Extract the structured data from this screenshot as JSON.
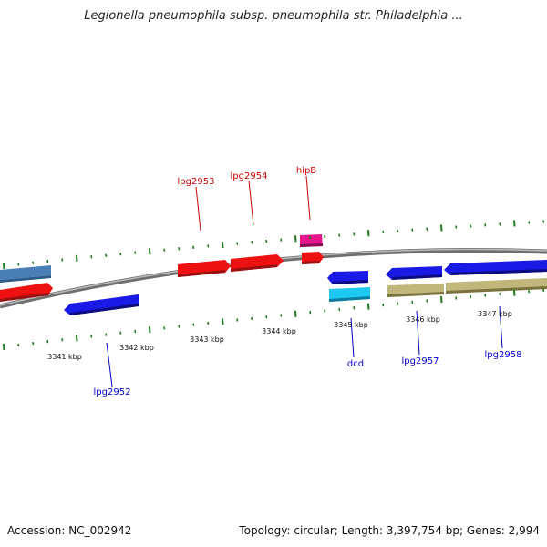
{
  "title": "Legionella pneumophila subsp. pneumophila str. Philadelphia ...",
  "accession_text": "Accession: NC_002942",
  "topology_text": "Topology: circular; Length: 3,397,754 bp; Genes: 2,994",
  "scale": {
    "unit_suffix": " kbp",
    "ticks": [
      {
        "value": 3341,
        "label": "3341 kbp"
      },
      {
        "value": 3342,
        "label": "3342 kbp"
      },
      {
        "value": 3343,
        "label": "3343 kbp"
      },
      {
        "value": 3344,
        "label": "3344 kbp"
      },
      {
        "value": 3345,
        "label": "3345 kbp"
      },
      {
        "value": 3346,
        "label": "3346 kbp"
      },
      {
        "value": 3347,
        "label": "3347 kbp"
      }
    ]
  },
  "gene_labels": [
    {
      "name": "lpg2952",
      "color": "#0000cc"
    },
    {
      "name": "lpg2953",
      "color": "#cc0000"
    },
    {
      "name": "lpg2954",
      "color": "#cc0000"
    },
    {
      "name": "hipB",
      "color": "#cc0000"
    },
    {
      "name": "dcd",
      "color": "#0000cc"
    },
    {
      "name": "lpg2957",
      "color": "#0000cc"
    },
    {
      "name": "lpg2958",
      "color": "#0000cc"
    }
  ],
  "colors": {
    "forward_gene": "#ee1111",
    "reverse_gene": "#1a1ae6",
    "regulatory_gene": "#e6158c",
    "tick": "#1e7a1e",
    "backbone": "#8a8a8a",
    "light_blue_gene": "#1ec8f0",
    "steel_blue_gene": "#4a7fb5",
    "olive_gene": "#c2b77a"
  }
}
